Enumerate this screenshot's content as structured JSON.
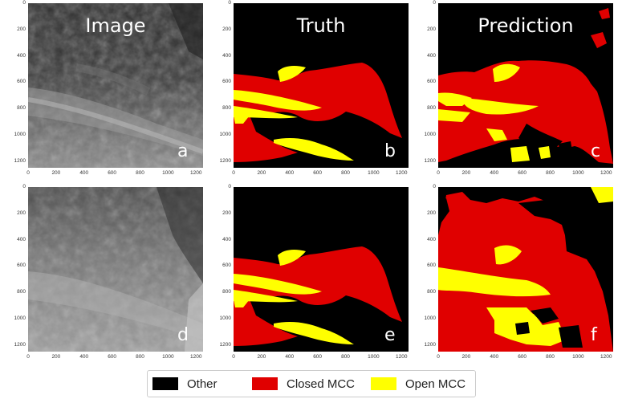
{
  "columns": {
    "image": "Image",
    "truth": "Truth",
    "prediction": "Prediction"
  },
  "panel_labels": [
    "a",
    "b",
    "c",
    "d",
    "e",
    "f"
  ],
  "y_ticks": [
    "0",
    "200",
    "400",
    "600",
    "800",
    "1000",
    "1200"
  ],
  "x_ticks": [
    "0",
    "200",
    "400",
    "600",
    "800",
    "1000",
    "1200"
  ],
  "legend": [
    {
      "label": "Other",
      "color": "#000000"
    },
    {
      "label": "Closed MCC",
      "color": "#e00000"
    },
    {
      "label": "Open MCC",
      "color": "#ffff00"
    }
  ]
}
